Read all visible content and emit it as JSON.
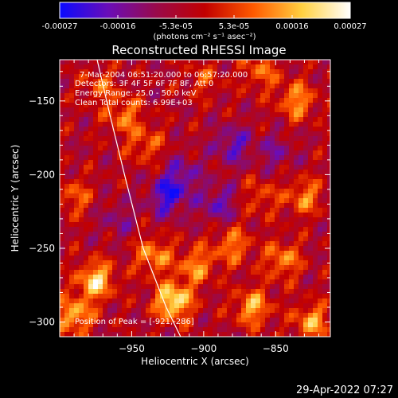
{
  "colorbar": {
    "ticks": [
      "-0.00027",
      "-0.00016",
      "-5.3e-05",
      "5.3e-05",
      "0.00016",
      "0.00027"
    ],
    "units": "(photons cm⁻² s⁻¹ asec⁻²)",
    "range": [
      -0.00027,
      0.00027
    ],
    "colors": [
      "#0a0aff",
      "#6a0db8",
      "#9a0a4a",
      "#c20000",
      "#ff5a00",
      "#ffd040",
      "#ffffff"
    ]
  },
  "chart_data": {
    "type": "heatmap",
    "title": "Reconstructed RHESSI Image",
    "xlabel": "Heliocentric X (arcsec)",
    "ylabel": "Heliocentric Y (arcsec)",
    "xlim": [
      -1000,
      -812
    ],
    "ylim": [
      -310,
      -122
    ],
    "x_ticks": [
      -950,
      -900,
      -850
    ],
    "y_ticks": [
      -150,
      -200,
      -250,
      -300
    ],
    "x_tick_labels": [
      "−950",
      "−900",
      "−850"
    ],
    "y_tick_labels": [
      "−150",
      "−200",
      "−250",
      "−300"
    ],
    "annotations": [
      "7-Mar-2004 06:51:20.000 to 06:57:20.000",
      "Detectors: 3F 4F 5F 6F 7F 8F, Att 0",
      "Energy Range: 25.0 - 50.0 keV",
      "Clean    Total counts: 6.99E+03"
    ],
    "peak_label": "Position of Peak = [-921,-286]",
    "peak": [
      -921,
      -286
    ],
    "limb_curve": [
      [
        -974,
        -122
      ],
      [
        -965,
        -160
      ],
      [
        -955,
        -200
      ],
      [
        -942,
        -250
      ],
      [
        -926,
        -290
      ],
      [
        -916,
        -310
      ]
    ],
    "hotspots": [
      {
        "x": -921,
        "y": -286,
        "v": 0.00027
      },
      {
        "x": -975,
        "y": -272,
        "v": 0.00024
      },
      {
        "x": -990,
        "y": -296,
        "v": 0.0002
      },
      {
        "x": -935,
        "y": -255,
        "v": 0.00017
      },
      {
        "x": -905,
        "y": -262,
        "v": 0.00016
      },
      {
        "x": -880,
        "y": -248,
        "v": 0.00015
      },
      {
        "x": -866,
        "y": -290,
        "v": 0.00019
      },
      {
        "x": -845,
        "y": -258,
        "v": 0.00016
      },
      {
        "x": -825,
        "y": -300,
        "v": 0.00018
      },
      {
        "x": -830,
        "y": -215,
        "v": 0.00015
      },
      {
        "x": -835,
        "y": -150,
        "v": 0.00017
      },
      {
        "x": -860,
        "y": -130,
        "v": 0.00013
      },
      {
        "x": -990,
        "y": -215,
        "v": 0.00012
      },
      {
        "x": -972,
        "y": -140,
        "v": 0.00011
      },
      {
        "x": -940,
        "y": -180,
        "v": 0.00012
      },
      {
        "x": -955,
        "y": -160,
        "v": 0.00014
      },
      {
        "x": -900,
        "y": -135,
        "v": 9e-05
      },
      {
        "x": -860,
        "y": -215,
        "v": 0.0001
      },
      {
        "x": -915,
        "y": -200,
        "v": -0.00012
      },
      {
        "x": -880,
        "y": -180,
        "v": -0.00014
      },
      {
        "x": -925,
        "y": -215,
        "v": -0.00018
      },
      {
        "x": -890,
        "y": -220,
        "v": -0.00013
      },
      {
        "x": -960,
        "y": -230,
        "v": -8e-05
      },
      {
        "x": -850,
        "y": -185,
        "v": -9e-05
      }
    ]
  },
  "timestamp": "29-Apr-2022 07:27"
}
